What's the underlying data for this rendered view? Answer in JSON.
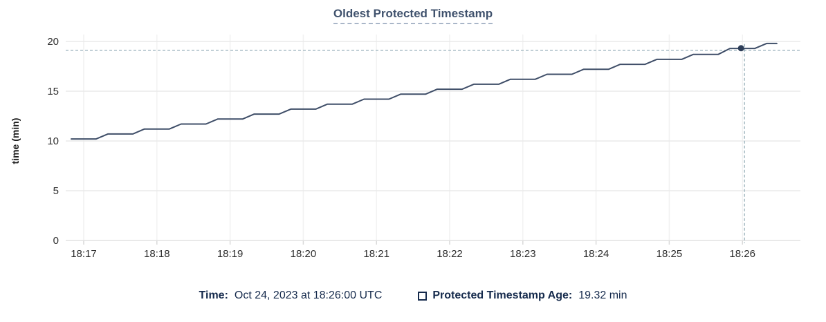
{
  "chart_data": {
    "type": "line",
    "title": "Oldest Protected Timestamp",
    "xlabel": "",
    "ylabel": "time (min)",
    "x_tick_labels": [
      "18:17",
      "18:18",
      "18:19",
      "18:20",
      "18:21",
      "18:22",
      "18:23",
      "18:24",
      "18:25",
      "18:26"
    ],
    "x_tick_minutes": [
      0,
      1,
      2,
      3,
      4,
      5,
      6,
      7,
      8,
      9
    ],
    "y_ticks": [
      0,
      5,
      10,
      15,
      20
    ],
    "ylim": [
      0,
      20
    ],
    "xlim_minutes_after_1817": [
      -0.25,
      9.8
    ],
    "grid": true,
    "legend_position": "bottom",
    "series": [
      {
        "name": "Protected Timestamp Age",
        "unit": "min",
        "style": "stepped-line",
        "t_minutes_after_1817": [
          -0.17,
          0.17,
          0.33,
          0.67,
          0.83,
          1.17,
          1.33,
          1.67,
          1.83,
          2.17,
          2.33,
          2.67,
          2.83,
          3.17,
          3.33,
          3.67,
          3.83,
          4.17,
          4.33,
          4.67,
          4.83,
          5.17,
          5.33,
          5.67,
          5.83,
          6.17,
          6.33,
          6.67,
          6.83,
          7.17,
          7.33,
          7.67,
          7.83,
          8.17,
          8.33,
          8.67,
          8.83,
          9.17,
          9.33,
          9.47
        ],
        "values_min": [
          10.2,
          10.2,
          10.7,
          10.7,
          11.2,
          11.2,
          11.7,
          11.7,
          12.2,
          12.2,
          12.7,
          12.7,
          13.2,
          13.2,
          13.7,
          13.7,
          14.2,
          14.2,
          14.7,
          14.7,
          15.2,
          15.2,
          15.7,
          15.7,
          16.2,
          16.2,
          16.7,
          16.7,
          17.2,
          17.2,
          17.7,
          17.7,
          18.2,
          18.2,
          18.7,
          18.7,
          19.3,
          19.3,
          19.8,
          19.8
        ]
      }
    ],
    "hover": {
      "t_minutes_after_1817": 9.0,
      "value": 19.32
    }
  },
  "legend": {
    "time_label": "Time:",
    "time_value": "Oct 24, 2023 at 18:26:00 UTC",
    "series_label": "Protected Timestamp Age:",
    "series_value": "19.32 min"
  },
  "colors": {
    "line": "#3f4e68",
    "hover_dot": "#2d3d58",
    "crosshair": "#a7bbc4",
    "grid_h": "#eaeaea",
    "grid_v": "#f1f1f1",
    "axis_line": "#e2e2e2",
    "tick_mark": "#d9d9d9",
    "tick_text": "#2d2d2d",
    "axis_label_text": "#1c1c1c",
    "title_text": "#40526d",
    "legend_text": "#152a4c"
  }
}
